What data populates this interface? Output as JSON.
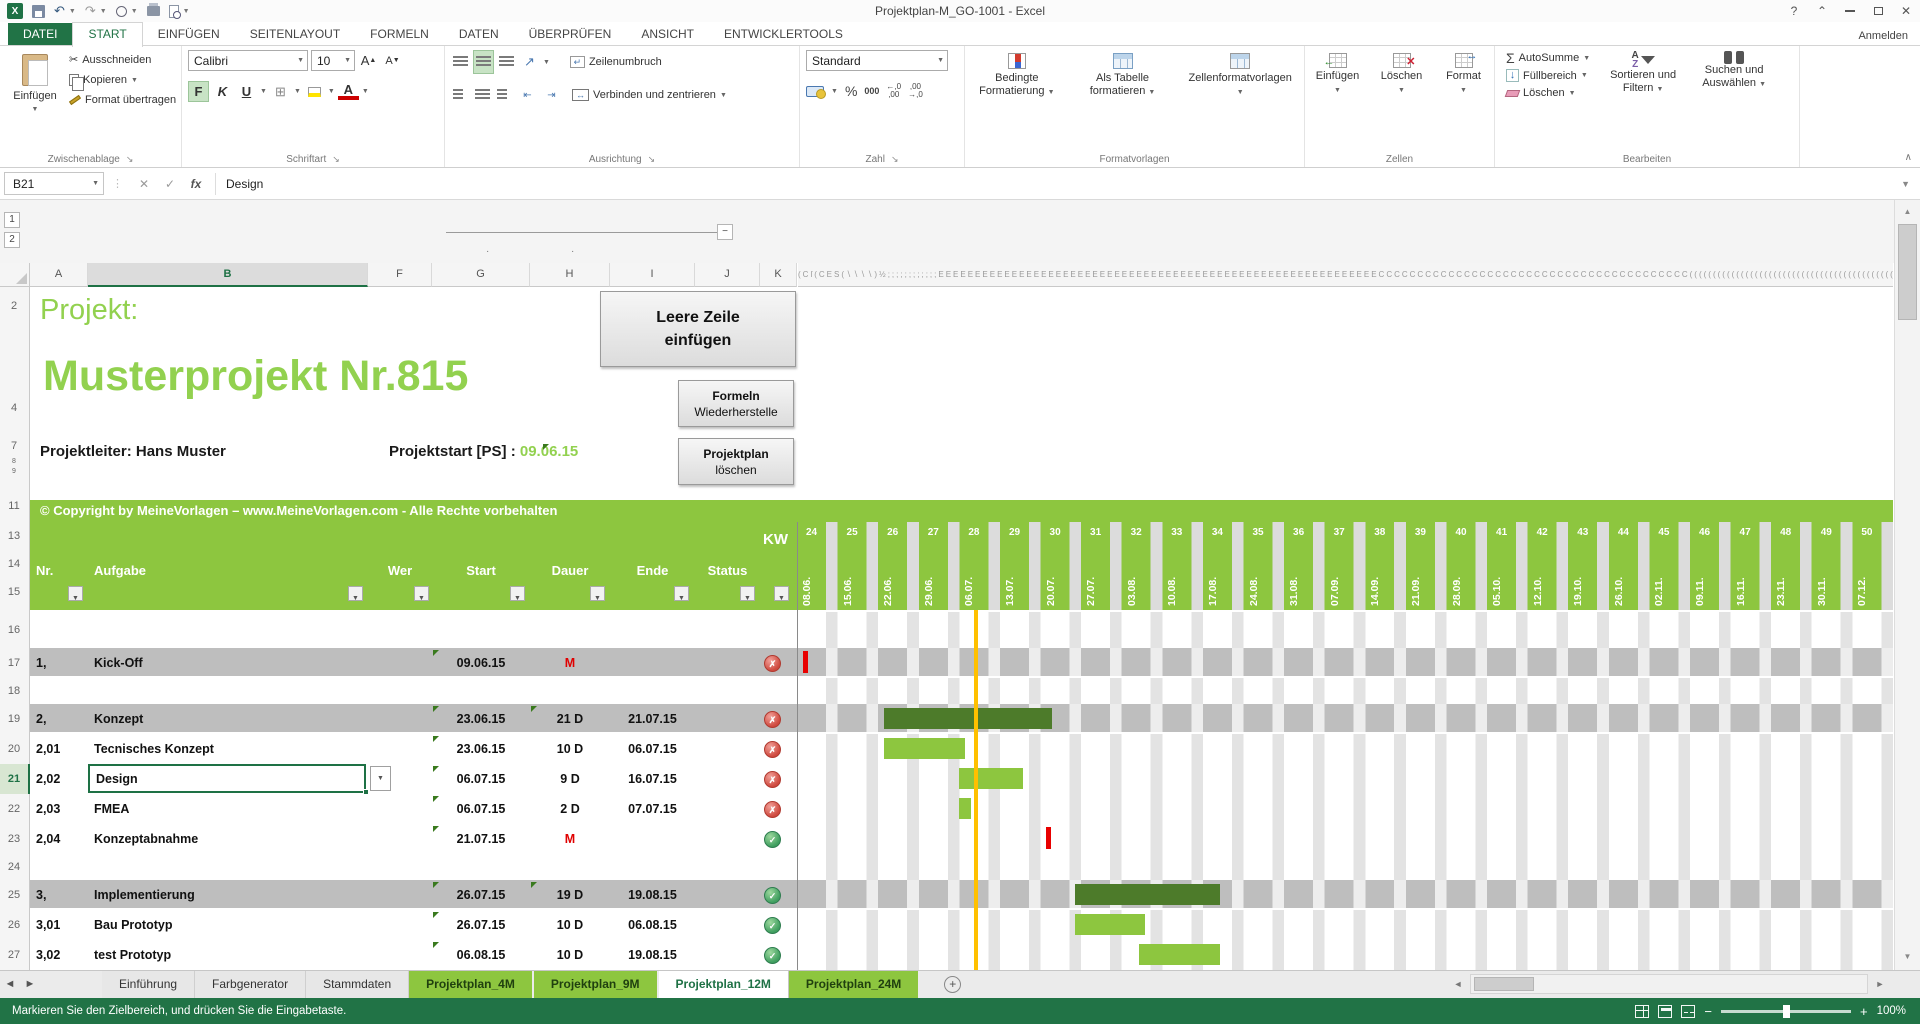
{
  "colors": {
    "accent": "#217346",
    "lime": "#8dc63f",
    "title_green": "#92d14f",
    "bar_dark": "#4d7b2a",
    "bar_light": "#8dc63f",
    "band": "#bebebe",
    "milestone": "#e80000",
    "today": "#ffc000"
  },
  "title_bar": {
    "title": "Projektplan-M_GO-1001 - Excel"
  },
  "ribbon": {
    "tabs": [
      "DATEI",
      "START",
      "EINFÜGEN",
      "SEITENLAYOUT",
      "FORMELN",
      "DATEN",
      "ÜBERPRÜFEN",
      "ANSICHT",
      "ENTWICKLERTOOLS"
    ],
    "sign_in": "Anmelden",
    "groups": {
      "clipboard": {
        "label": "Zwischenablage",
        "paste": "Einfügen",
        "cut": "Ausschneiden",
        "copy": "Kopieren",
        "painter": "Format übertragen"
      },
      "font": {
        "label": "Schriftart",
        "name": "Calibri",
        "size": "10",
        "bold": "F",
        "italic": "K",
        "underline": "U"
      },
      "align": {
        "label": "Ausrichtung",
        "wrap": "Zeilenumbruch",
        "merge": "Verbinden und zentrieren"
      },
      "number": {
        "label": "Zahl",
        "format": "Standard",
        "percent": "%",
        "thousands": "000"
      },
      "styles": {
        "label": "Formatvorlagen",
        "conditional": "Bedingte Formatierung",
        "table": "Als Tabelle formatieren",
        "styles": "Zellenformatvorlagen"
      },
      "cells": {
        "label": "Zellen",
        "insert": "Einfügen",
        "del": "Löschen",
        "format": "Format"
      },
      "edit": {
        "label": "Bearbeiten",
        "autosum": "AutoSumme",
        "fill": "Füllbereich",
        "clear": "Löschen",
        "sort": "Sortieren und Filtern",
        "find": "Suchen und Auswählen"
      }
    }
  },
  "formula_bar": {
    "name_box": "B21",
    "value": "Design"
  },
  "sheet": {
    "outline_levels": [
      "1",
      "2"
    ],
    "column_headers": [
      "A",
      "B",
      "F",
      "G",
      "H",
      "I",
      "J",
      "K"
    ],
    "pre_row_numbers": [
      "2",
      "4",
      "7",
      "8",
      "9",
      "11",
      "13",
      "14",
      "15"
    ],
    "gantt_noise": "(Cſ(CES(∖∖∖∖)½;;;;;;;;;;;;EEEEEEEEEEEEEEEEEEEEEEEEEEEEEEEEEEEEEEEEEEEEEEEEEEEEEEEEEEEECCCCCCCCCCCCCCCCCCCCCCCCCCCCCCCCCCCCCCCC(((((((((((((((((((((((((((((((((((((((((((((})))",
    "project_label": "Projekt:",
    "project_name": "Musterprojekt Nr.815",
    "leader": "Projektleiter: Hans Muster",
    "start_label": "Projektstart [PS] :",
    "start_date": "09.06.15",
    "copyright": "© Copyright by MeineVorlagen – www.MeineVorlagen.com - Alle Rechte vorbehalten",
    "buttons": {
      "insert_line1": "Leere Zeile",
      "insert_line2": "einfügen",
      "restore_line1": "Formeln",
      "restore_line2": "Wiederherstelle",
      "delete_line1": "Projektplan",
      "delete_line2": "löschen"
    },
    "table_headers": {
      "nr": "Nr.",
      "aufgabe": "Aufgabe",
      "wer": "Wer",
      "start": "Start",
      "dauer": "Dauer",
      "ende": "Ende",
      "status": "Status",
      "kw": "KW"
    },
    "weeks": [
      {
        "kw": "24",
        "date": "08.06."
      },
      {
        "kw": "25",
        "date": "15.06."
      },
      {
        "kw": "26",
        "date": "22.06."
      },
      {
        "kw": "27",
        "date": "29.06."
      },
      {
        "kw": "28",
        "date": "06.07."
      },
      {
        "kw": "29",
        "date": "13.07."
      },
      {
        "kw": "30",
        "date": "20.07."
      },
      {
        "kw": "31",
        "date": "27.07."
      },
      {
        "kw": "32",
        "date": "03.08."
      },
      {
        "kw": "33",
        "date": "10.08."
      },
      {
        "kw": "34",
        "date": "17.08."
      },
      {
        "kw": "35",
        "date": "24.08."
      },
      {
        "kw": "36",
        "date": "31.08."
      },
      {
        "kw": "37",
        "date": "07.09."
      },
      {
        "kw": "38",
        "date": "14.09."
      },
      {
        "kw": "39",
        "date": "21.09."
      },
      {
        "kw": "40",
        "date": "28.09."
      },
      {
        "kw": "41",
        "date": "05.10."
      },
      {
        "kw": "42",
        "date": "12.10."
      },
      {
        "kw": "43",
        "date": "19.10."
      },
      {
        "kw": "44",
        "date": "26.10."
      },
      {
        "kw": "45",
        "date": "02.11."
      },
      {
        "kw": "46",
        "date": "09.11."
      },
      {
        "kw": "47",
        "date": "16.11."
      },
      {
        "kw": "48",
        "date": "23.11."
      },
      {
        "kw": "49",
        "date": "30.11."
      },
      {
        "kw": "50",
        "date": "07.12."
      }
    ],
    "rows": [
      {
        "n": 16,
        "type": "spacer"
      },
      {
        "n": 17,
        "type": "section",
        "nr": "1,",
        "task": "Kick-Off",
        "start": "09.06.15",
        "dauer": "M",
        "ende": "",
        "status": "red",
        "bar": {
          "kind": "milestone",
          "day": 1
        }
      },
      {
        "n": 18,
        "type": "spacer"
      },
      {
        "n": 19,
        "type": "section",
        "nr": "2,",
        "task": "Konzept",
        "start": "23.06.15",
        "dauer": "21 D",
        "ende": "21.07.15",
        "status": "red",
        "marks": [
          "g",
          "h"
        ],
        "bar": {
          "kind": "dark",
          "day": 15,
          "days": 29
        }
      },
      {
        "n": 20,
        "type": "task",
        "nr": "2,01",
        "task": "Tecnisches Konzept",
        "start": "23.06.15",
        "dauer": "10 D",
        "ende": "06.07.15",
        "status": "red",
        "bar": {
          "kind": "light",
          "day": 15,
          "days": 14
        }
      },
      {
        "n": 21,
        "type": "task",
        "nr": "2,02",
        "task": "Design",
        "start": "06.07.15",
        "dauer": "9 D",
        "ende": "16.07.15",
        "status": "red",
        "selected": true,
        "bar": {
          "kind": "light",
          "day": 28,
          "days": 11
        }
      },
      {
        "n": 22,
        "type": "task",
        "nr": "2,03",
        "task": "FMEA",
        "start": "06.07.15",
        "dauer": "2 D",
        "ende": "07.07.15",
        "status": "red",
        "bar": {
          "kind": "light",
          "day": 28,
          "days": 2
        }
      },
      {
        "n": 23,
        "type": "task",
        "nr": "2,04",
        "task": "Konzeptabnahme",
        "start": "21.07.15",
        "dauer": "M",
        "ende": "",
        "status": "green",
        "bar": {
          "kind": "milestone",
          "day": 43
        }
      },
      {
        "n": 24,
        "type": "spacer"
      },
      {
        "n": 25,
        "type": "section",
        "nr": "3,",
        "task": "Implementierung",
        "start": "26.07.15",
        "dauer": "19 D",
        "ende": "19.08.15",
        "status": "green",
        "marks": [
          "g",
          "h"
        ],
        "bar": {
          "kind": "dark",
          "day": 48,
          "days": 25
        }
      },
      {
        "n": 26,
        "type": "task",
        "nr": "3,01",
        "task": "Bau Prototyp",
        "start": "26.07.15",
        "dauer": "10 D",
        "ende": "06.08.15",
        "status": "green",
        "bar": {
          "kind": "light",
          "day": 48,
          "days": 12
        }
      },
      {
        "n": 27,
        "type": "task",
        "nr": "3,02",
        "task": "test Prototyp",
        "start": "06.08.15",
        "dauer": "10 D",
        "ende": "19.08.15",
        "status": "green",
        "bar": {
          "kind": "light",
          "day": 59,
          "days": 14
        }
      }
    ]
  },
  "tabs_bar": {
    "sheets": [
      {
        "label": "Einführung",
        "style": "plain"
      },
      {
        "label": "Farbgenerator",
        "style": "plain"
      },
      {
        "label": "Stammdaten",
        "style": "plain"
      },
      {
        "label": "Projektplan_4M",
        "style": "green"
      },
      {
        "label": "Projektplan_9M",
        "style": "green"
      },
      {
        "label": "Projektplan_12M",
        "style": "active"
      },
      {
        "label": "Projektplan_24M",
        "style": "green"
      }
    ]
  },
  "status_bar": {
    "message": "Markieren Sie den Zielbereich, und drücken Sie die Eingabetaste.",
    "zoom": "100%"
  }
}
